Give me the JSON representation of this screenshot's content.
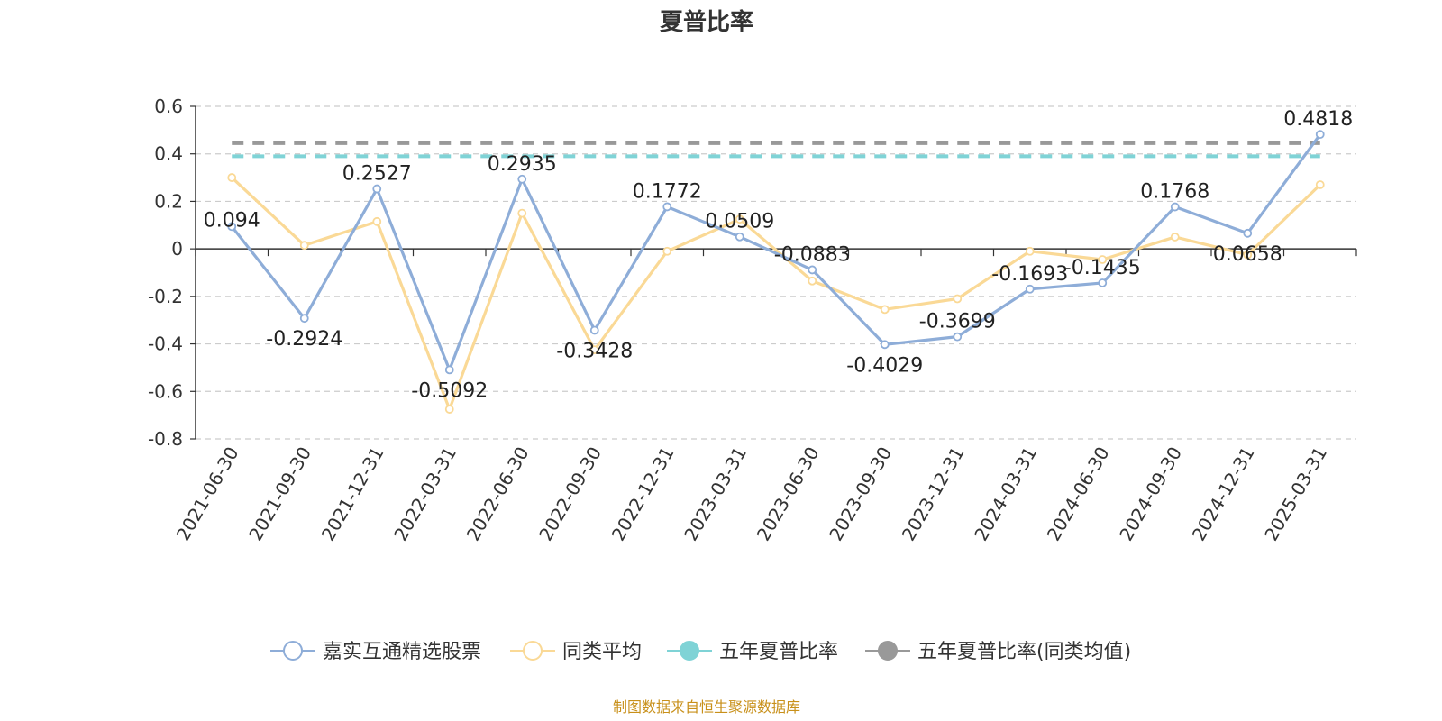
{
  "chart_data": {
    "type": "line",
    "title": "夏普比率",
    "source": "制图数据来自恒生聚源数据库",
    "x": [
      "2021-06-30",
      "2021-09-30",
      "2021-12-31",
      "2022-03-31",
      "2022-06-30",
      "2022-09-30",
      "2022-12-31",
      "2023-03-31",
      "2023-06-30",
      "2023-09-30",
      "2023-12-31",
      "2024-03-31",
      "2024-06-30",
      "2024-09-30",
      "2024-12-31",
      "2025-03-31"
    ],
    "ylim": [
      -0.8,
      0.6
    ],
    "yticks": [
      "0.6",
      "0.4",
      "0.2",
      "0",
      "-0.2",
      "-0.4",
      "-0.6",
      "-0.8"
    ],
    "grid": true,
    "legend_position": "bottom",
    "series": [
      {
        "name": "嘉实互通精选股票",
        "color": "#8eadd8",
        "values": [
          0.094,
          -0.2924,
          0.2527,
          -0.5092,
          0.2935,
          -0.3428,
          0.1772,
          0.0509,
          -0.0883,
          -0.4029,
          -0.3699,
          -0.1693,
          -0.1435,
          0.1768,
          0.0658,
          0.4818
        ],
        "labels": [
          "0.094",
          "-0.2924",
          "0.2527",
          "-0.5092",
          "0.2935",
          "-0.3428",
          "0.1772",
          "0.0509",
          "-0.0883",
          "-0.4029",
          "-0.3699",
          "-0.1693",
          "-0.1435",
          "0.1768",
          "0.0658",
          "0.4818"
        ]
      },
      {
        "name": "同类平均",
        "color": "#fad996",
        "values": [
          0.3,
          0.015,
          0.115,
          -0.675,
          0.15,
          -0.425,
          -0.01,
          0.125,
          -0.135,
          -0.255,
          -0.21,
          -0.01,
          -0.045,
          0.05,
          -0.025,
          0.27
        ]
      },
      {
        "name": "五年夏普比率",
        "color": "#7fd3d6",
        "type": "reference",
        "value": 0.39
      },
      {
        "name": "五年夏普比率(同类均值)",
        "color": "#999999",
        "type": "reference",
        "value": 0.445
      }
    ]
  }
}
